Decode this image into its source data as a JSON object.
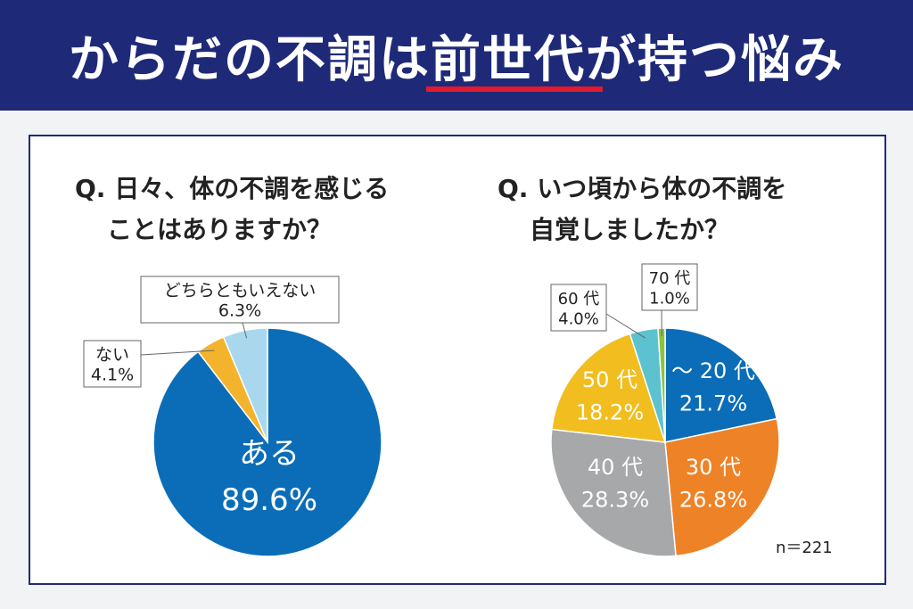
{
  "header": {
    "title_pre": "からだの不調は",
    "title_highlight": "前世代",
    "title_post": "が持つ悩み",
    "bg_color": "#1e2a78",
    "underline_color": "#e21a2c"
  },
  "chart_data": [
    {
      "type": "pie",
      "title_lines": [
        "Q. 日々、体の不調を感じる",
        "ことはありますか？"
      ],
      "slices": [
        {
          "label": "ある",
          "value": 89.6,
          "value_text": "89.6%",
          "color": "#0b6db7"
        },
        {
          "label": "ない",
          "value": 4.1,
          "value_text": "4.1%",
          "color": "#f3b32d"
        },
        {
          "label": "どちらともいえない",
          "value": 6.3,
          "value_text": "6.3%",
          "color": "#a9d8ee"
        }
      ]
    },
    {
      "type": "pie",
      "title_lines": [
        "Q. いつ頃から体の不調を",
        "自覚しましたか？"
      ],
      "slices": [
        {
          "label": "～ 20 代",
          "value": 21.7,
          "value_text": "21.7%",
          "color": "#0b6db7"
        },
        {
          "label": "30 代",
          "value": 26.8,
          "value_text": "26.8%",
          "color": "#ee8227"
        },
        {
          "label": "40 代",
          "value": 28.3,
          "value_text": "28.3%",
          "color": "#a7a8a9"
        },
        {
          "label": "50 代",
          "value": 18.2,
          "value_text": "18.2%",
          "color": "#f1bd1f"
        },
        {
          "label": "60 代",
          "value": 4.0,
          "value_text": "4.0%",
          "color": "#5cc2cf"
        },
        {
          "label": "70 代",
          "value": 1.0,
          "value_text": "1.0%",
          "color": "#8cc43f"
        }
      ],
      "note": "n＝221"
    }
  ]
}
